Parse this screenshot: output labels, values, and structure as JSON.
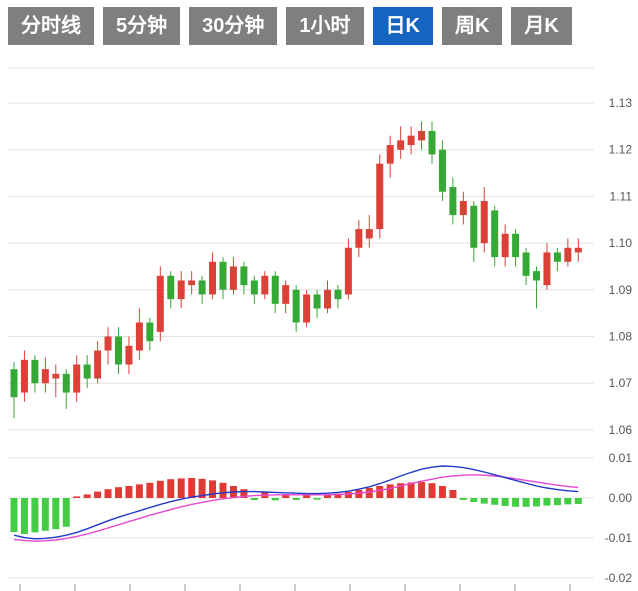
{
  "tabs": {
    "items": [
      {
        "label": "分时线"
      },
      {
        "label": "5分钟"
      },
      {
        "label": "30分钟"
      },
      {
        "label": "1小时"
      },
      {
        "label": "日K"
      },
      {
        "label": "周K"
      },
      {
        "label": "月K"
      }
    ],
    "active_index": 4,
    "active_color": "#1565c0",
    "inactive_color": "#7f7f7f"
  },
  "chart_data": {
    "type": "candlestick",
    "title": "",
    "legend": "none",
    "grid": true,
    "price_panel": {
      "yticks": [
        1.13,
        1.12,
        1.11,
        1.1,
        1.09,
        1.08,
        1.07,
        1.06
      ],
      "ylim": [
        1.055,
        1.135
      ]
    },
    "macd_panel": {
      "yticks": [
        0.01,
        0.0,
        -0.01,
        -0.02
      ],
      "ylim": [
        -0.022,
        0.013
      ]
    },
    "candles": {
      "ohlc": [
        [
          1.073,
          1.0745,
          1.0625,
          1.067
        ],
        [
          1.068,
          1.077,
          1.066,
          1.075
        ],
        [
          1.075,
          1.076,
          1.068,
          1.07
        ],
        [
          1.07,
          1.0755,
          1.068,
          1.073
        ],
        [
          1.071,
          1.074,
          1.067,
          1.072
        ],
        [
          1.072,
          1.073,
          1.0645,
          1.068
        ],
        [
          1.068,
          1.076,
          1.066,
          1.074
        ],
        [
          1.074,
          1.076,
          1.069,
          1.071
        ],
        [
          1.071,
          1.079,
          1.07,
          1.077
        ],
        [
          1.077,
          1.082,
          1.074,
          1.08
        ],
        [
          1.08,
          1.082,
          1.072,
          1.074
        ],
        [
          1.074,
          1.08,
          1.072,
          1.078
        ],
        [
          1.077,
          1.086,
          1.075,
          1.083
        ],
        [
          1.083,
          1.084,
          1.077,
          1.079
        ],
        [
          1.081,
          1.095,
          1.079,
          1.093
        ],
        [
          1.093,
          1.094,
          1.086,
          1.088
        ],
        [
          1.088,
          1.094,
          1.086,
          1.092
        ],
        [
          1.091,
          1.094,
          1.089,
          1.092
        ],
        [
          1.092,
          1.093,
          1.087,
          1.089
        ],
        [
          1.089,
          1.098,
          1.088,
          1.096
        ],
        [
          1.096,
          1.097,
          1.088,
          1.09
        ],
        [
          1.09,
          1.097,
          1.089,
          1.095
        ],
        [
          1.095,
          1.096,
          1.089,
          1.091
        ],
        [
          1.092,
          1.093,
          1.087,
          1.089
        ],
        [
          1.089,
          1.094,
          1.088,
          1.093
        ],
        [
          1.093,
          1.094,
          1.085,
          1.087
        ],
        [
          1.087,
          1.092,
          1.085,
          1.091
        ],
        [
          1.09,
          1.091,
          1.081,
          1.083
        ],
        [
          1.083,
          1.09,
          1.082,
          1.089
        ],
        [
          1.089,
          1.09,
          1.084,
          1.086
        ],
        [
          1.086,
          1.092,
          1.085,
          1.09
        ],
        [
          1.09,
          1.091,
          1.086,
          1.088
        ],
        [
          1.089,
          1.101,
          1.088,
          1.099
        ],
        [
          1.099,
          1.105,
          1.097,
          1.103
        ],
        [
          1.101,
          1.106,
          1.099,
          1.103
        ],
        [
          1.103,
          1.119,
          1.101,
          1.117
        ],
        [
          1.117,
          1.123,
          1.114,
          1.121
        ],
        [
          1.12,
          1.125,
          1.118,
          1.122
        ],
        [
          1.121,
          1.125,
          1.119,
          1.123
        ],
        [
          1.122,
          1.126,
          1.12,
          1.124
        ],
        [
          1.124,
          1.126,
          1.117,
          1.119
        ],
        [
          1.12,
          1.122,
          1.109,
          1.111
        ],
        [
          1.112,
          1.114,
          1.104,
          1.106
        ],
        [
          1.106,
          1.111,
          1.104,
          1.109
        ],
        [
          1.108,
          1.109,
          1.096,
          1.099
        ],
        [
          1.1,
          1.112,
          1.098,
          1.109
        ],
        [
          1.107,
          1.108,
          1.095,
          1.097
        ],
        [
          1.097,
          1.104,
          1.095,
          1.102
        ],
        [
          1.102,
          1.103,
          1.095,
          1.097
        ],
        [
          1.098,
          1.099,
          1.091,
          1.093
        ],
        [
          1.094,
          1.095,
          1.086,
          1.092
        ],
        [
          1.091,
          1.1,
          1.09,
          1.098
        ],
        [
          1.098,
          1.099,
          1.094,
          1.096
        ],
        [
          1.096,
          1.101,
          1.095,
          1.099
        ],
        [
          1.098,
          1.101,
          1.096,
          1.099
        ]
      ]
    },
    "macd": {
      "hist": [
        -0.0085,
        -0.009,
        -0.0086,
        -0.0082,
        -0.0078,
        -0.0072,
        0.0004,
        0.0009,
        0.0016,
        0.0022,
        0.0027,
        0.003,
        0.0034,
        0.0038,
        0.0043,
        0.0047,
        0.0049,
        0.005,
        0.0048,
        0.0044,
        0.0038,
        0.003,
        0.0022,
        -0.0005,
        0.0015,
        -0.0006,
        0.001,
        -0.0005,
        0.0008,
        -0.0004,
        0.0009,
        0.0011,
        0.0015,
        0.002,
        0.0025,
        0.003,
        0.0034,
        0.0037,
        0.0039,
        0.004,
        0.0037,
        0.003,
        0.002,
        -0.0005,
        -0.001,
        -0.0014,
        -0.0017,
        -0.002,
        -0.0022,
        -0.0022,
        -0.0021,
        -0.0019,
        -0.0018,
        -0.0016,
        -0.0015
      ],
      "dif": [
        -0.0093,
        -0.0099,
        -0.0102,
        -0.0101,
        -0.0098,
        -0.0093,
        -0.0086,
        -0.0077,
        -0.0067,
        -0.0057,
        -0.0048,
        -0.004,
        -0.0032,
        -0.0024,
        -0.0016,
        -0.0009,
        -0.0003,
        0.0002,
        0.0006,
        0.001,
        0.0013,
        0.0015,
        0.0016,
        0.0016,
        0.0015,
        0.0014,
        0.0013,
        0.0012,
        0.0011,
        0.0011,
        0.0012,
        0.0014,
        0.0017,
        0.0022,
        0.0028,
        0.0036,
        0.0045,
        0.0055,
        0.0064,
        0.0072,
        0.0077,
        0.008,
        0.0079,
        0.0076,
        0.0071,
        0.0065,
        0.0058,
        0.0051,
        0.0044,
        0.0037,
        0.003,
        0.0025,
        0.0021,
        0.0018,
        0.0016
      ],
      "dea": [
        -0.0104,
        -0.0106,
        -0.0108,
        -0.0107,
        -0.0105,
        -0.0101,
        -0.0096,
        -0.009,
        -0.0083,
        -0.0075,
        -0.0067,
        -0.0059,
        -0.0051,
        -0.0043,
        -0.0036,
        -0.0029,
        -0.0022,
        -0.0016,
        -0.0011,
        -0.0006,
        -0.0002,
        0.0001,
        0.0004,
        0.0006,
        0.0007,
        0.0008,
        0.0008,
        0.0008,
        0.0008,
        0.0008,
        0.0008,
        0.0009,
        0.001,
        0.0012,
        0.0015,
        0.0019,
        0.0024,
        0.003,
        0.0036,
        0.0042,
        0.0047,
        0.0052,
        0.0055,
        0.0057,
        0.0058,
        0.0057,
        0.0055,
        0.0052,
        0.0048,
        0.0044,
        0.004,
        0.0036,
        0.0032,
        0.0029,
        0.0026
      ]
    },
    "colors": {
      "up": "#dc4138",
      "down": "#35a835",
      "hist_up": "#e03a34",
      "hist_down": "#44cc44",
      "dif_line": "#2438c8",
      "dea_line": "#e649d2",
      "grid": "#e4e4e4",
      "axis_text": "#555555",
      "tick": "#999999"
    }
  }
}
